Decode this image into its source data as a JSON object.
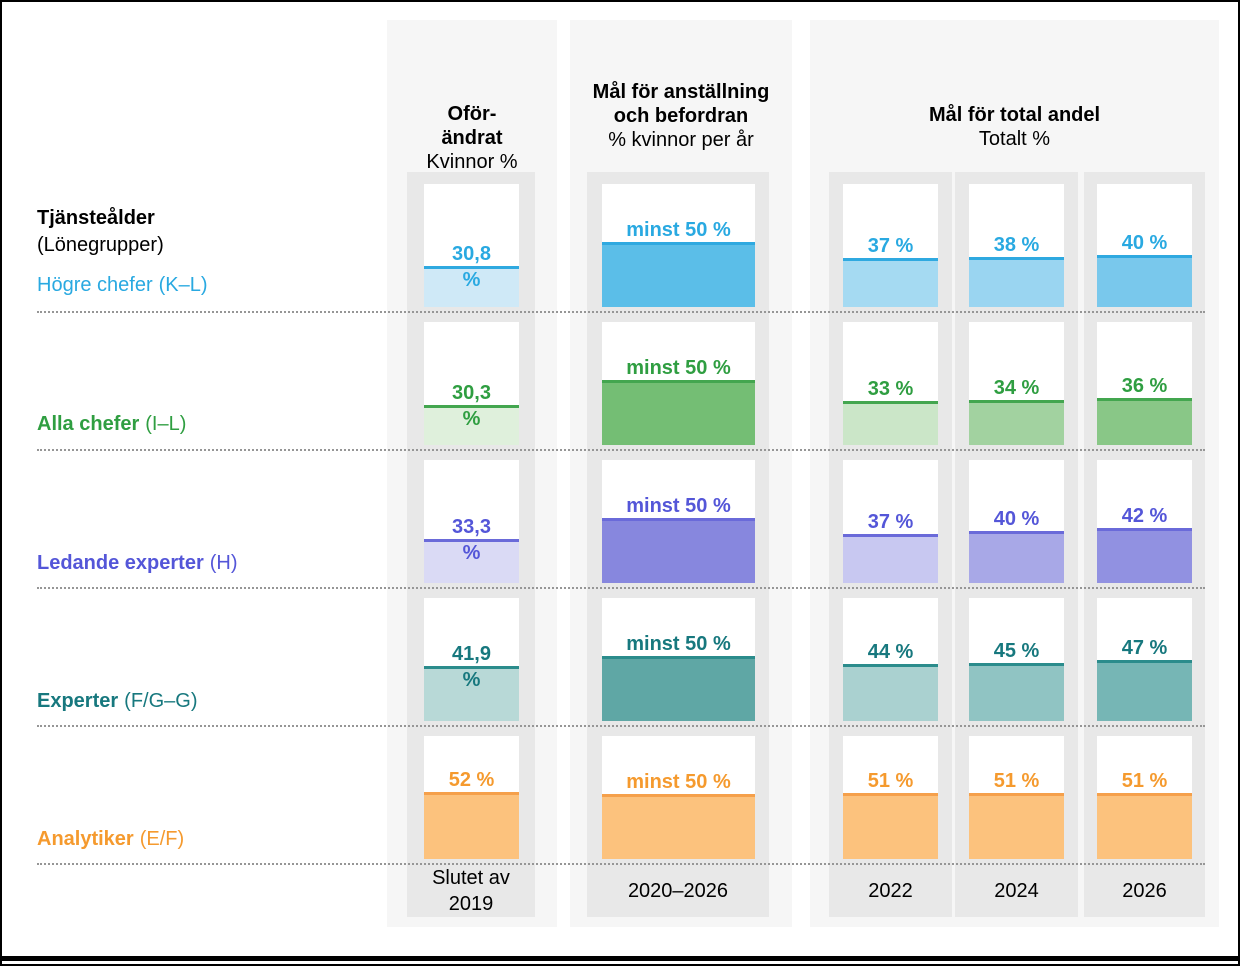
{
  "theme": {
    "panel_bg": "#f6f6f6",
    "strip_bg": "#e8e8e8",
    "cell_bg": "#ffffff",
    "dotted_line": "#969696",
    "text": "#000000",
    "frame": "#000000"
  },
  "chart_data": {
    "type": "bar",
    "row_axis": {
      "title": "Tjänsteålder",
      "subtitle": "(Lönegrupper)"
    },
    "value_scale": {
      "min": 0,
      "max": 100,
      "unit": "%"
    },
    "column_groups": [
      {
        "header_bold": [
          "Oför-",
          "ändrat"
        ],
        "header_regular": [
          "Kvinnor %"
        ],
        "columns": [
          {
            "footer": [
              "Slutet av",
              "2019"
            ]
          }
        ]
      },
      {
        "header_bold": [
          "Mål för anställning",
          "och befordran"
        ],
        "header_regular": [
          "% kvinnor per år"
        ],
        "columns": [
          {
            "footer": [
              "2020–2026"
            ]
          }
        ]
      },
      {
        "header_bold": [
          "Mål för total andel"
        ],
        "header_regular": [
          "Totalt %"
        ],
        "columns": [
          {
            "footer": [
              "2022"
            ]
          },
          {
            "footer": [
              "2024"
            ]
          },
          {
            "footer": [
              "2026"
            ]
          }
        ]
      }
    ],
    "rows": [
      {
        "name": "Högre chefer",
        "suffix": "(K–L)",
        "name_bold": false,
        "color": "#29a9e1",
        "line_color": "#2fa9e0",
        "cells": [
          {
            "value": 30.8,
            "label": "30,8",
            "label_in_bar": "%",
            "fill": "#cfe9f7"
          },
          {
            "value": 50,
            "label": "minst 50 %",
            "fill": "#5bbee8"
          },
          {
            "value": 37,
            "label": "37 %",
            "fill": "#a5daf2"
          },
          {
            "value": 38,
            "label": "38 %",
            "fill": "#9ad5f1"
          },
          {
            "value": 40,
            "label": "40 %",
            "fill": "#79c8ec"
          }
        ]
      },
      {
        "name": "Alla chefer",
        "suffix": "(I–L)",
        "name_bold": true,
        "color": "#2f9e41",
        "line_color": "#43a64f",
        "cells": [
          {
            "value": 30.3,
            "label": "30,3",
            "label_in_bar": "%",
            "fill": "#dff0dc"
          },
          {
            "value": 50,
            "label": "minst 50 %",
            "fill": "#74be74"
          },
          {
            "value": 33,
            "label": "33 %",
            "fill": "#cbe6c8"
          },
          {
            "value": 34,
            "label": "34 %",
            "fill": "#a2d2a0"
          },
          {
            "value": 36,
            "label": "36 %",
            "fill": "#89c787"
          }
        ]
      },
      {
        "name": "Ledande experter",
        "suffix": "(H)",
        "name_bold": true,
        "color": "#5456d8",
        "line_color": "#6a6ad9",
        "cells": [
          {
            "value": 33.3,
            "label": "33,3",
            "label_in_bar": "%",
            "fill": "#dadaf5"
          },
          {
            "value": 50,
            "label": "minst 50 %",
            "fill": "#8787de"
          },
          {
            "value": 37,
            "label": "37 %",
            "fill": "#c8c8f1"
          },
          {
            "value": 40,
            "label": "40 %",
            "fill": "#a8a8e7"
          },
          {
            "value": 42,
            "label": "42 %",
            "fill": "#9191e1"
          }
        ]
      },
      {
        "name": "Experter",
        "suffix": "(F/G–G)",
        "name_bold": true,
        "color": "#17787e",
        "line_color": "#2b8c8c",
        "cells": [
          {
            "value": 41.9,
            "label": "41,9",
            "label_in_bar": "%",
            "fill": "#b8d9d7"
          },
          {
            "value": 50,
            "label": "minst 50 %",
            "fill": "#5fa7a5"
          },
          {
            "value": 44,
            "label": "44 %",
            "fill": "#aad1d0"
          },
          {
            "value": 45,
            "label": "45 %",
            "fill": "#90c4c3"
          },
          {
            "value": 47,
            "label": "47 %",
            "fill": "#76b6b5"
          }
        ]
      },
      {
        "name": "Analytiker",
        "suffix": "(E/F)",
        "name_bold": true,
        "color": "#f59a2e",
        "line_color": "#f5a04b",
        "cells": [
          {
            "value": 52,
            "label": "52 %",
            "fill": "#fcc27d"
          },
          {
            "value": 50,
            "label": "minst 50 %",
            "fill": "#fcc27d"
          },
          {
            "value": 51,
            "label": "51 %",
            "fill": "#fcc27d"
          },
          {
            "value": 51,
            "label": "51 %",
            "fill": "#fcc27d"
          },
          {
            "value": 51,
            "label": "51 %",
            "fill": "#fcc27d"
          }
        ]
      }
    ]
  }
}
